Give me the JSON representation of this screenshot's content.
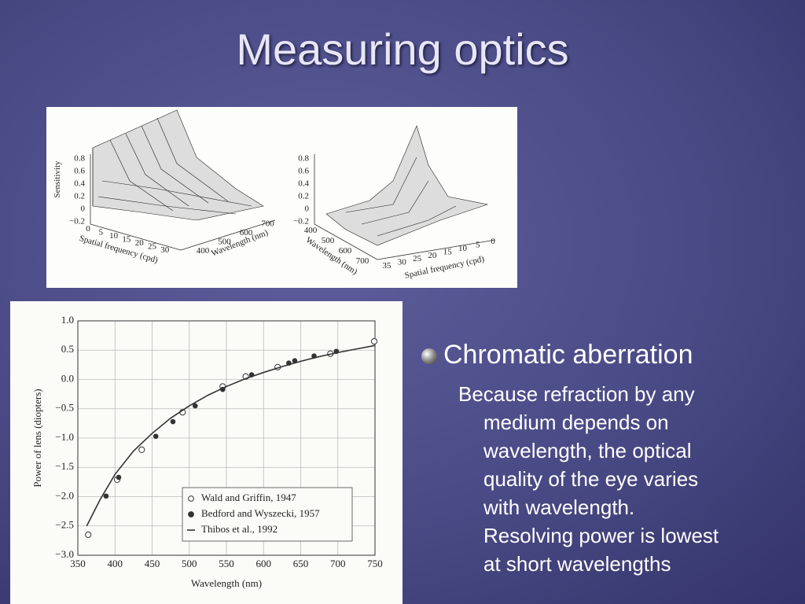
{
  "title": "Measuring optics",
  "surface_plots": [
    {
      "z_label": "Sensitivity",
      "zticks": [
        0.8,
        0.6,
        0.4,
        0.2,
        0,
        {
          "value": -0.2,
          "label": "−0.2"
        }
      ],
      "spatial_label": "Spatial frequency (cpd)",
      "spatial_ticks": [
        0,
        5,
        10,
        15,
        20,
        25,
        30
      ],
      "wavelength_label": "Wavelength (nm)",
      "wavelength_ticks": [
        400,
        500,
        600,
        700
      ]
    },
    {
      "zticks": [
        0.8,
        0.6,
        0.4,
        0.2,
        0,
        {
          "value": -0.2,
          "label": "−0.2"
        }
      ],
      "spatial_label": "Spatial frequency (cpd)",
      "spatial_ticks": [
        35,
        30,
        25,
        20,
        15,
        10,
        5,
        0
      ],
      "wavelength_label": "Wavelength (nm)",
      "wavelength_ticks": [
        400,
        500,
        600,
        700
      ]
    }
  ],
  "chart_data": {
    "type": "scatter",
    "x_label": "Wavelength (nm)",
    "y_label": "Power of lens (diopters)",
    "xlim": [
      350,
      750
    ],
    "ylim": [
      -3,
      1
    ],
    "xticks": [
      350,
      400,
      450,
      500,
      550,
      600,
      650,
      700,
      750
    ],
    "yticks": [
      {
        "value": 1,
        "label": "1.0"
      },
      0.5,
      {
        "value": 0,
        "label": "0.0"
      },
      {
        "value": -0.5,
        "label": "−0.5"
      },
      {
        "value": -1,
        "label": "−1.0"
      },
      {
        "value": -1.5,
        "label": "−1.5"
      },
      {
        "value": -2,
        "label": "−2.0"
      },
      {
        "value": -2.5,
        "label": "−2.5"
      },
      {
        "value": -3,
        "label": "−3.0"
      }
    ],
    "grid": true,
    "series": [
      {
        "name": "Wald and Griffin, 1947",
        "marker": "open",
        "color": "#333333",
        "x": [
          364,
          403,
          436,
          491,
          545,
          576,
          619,
          690,
          749
        ],
        "values": [
          -2.65,
          -1.71,
          -1.2,
          -0.56,
          -0.12,
          0.05,
          0.21,
          0.44,
          0.65
        ]
      },
      {
        "name": "Bedford and Wyszecki, 1957",
        "marker": "filled",
        "color": "#333333",
        "x": [
          388,
          405,
          455,
          478,
          508,
          545,
          584,
          634,
          642,
          668,
          698
        ],
        "values": [
          -1.99,
          -1.67,
          -0.97,
          -0.72,
          -0.45,
          -0.17,
          0.08,
          0.28,
          0.32,
          0.4,
          0.48
        ]
      },
      {
        "name": "Thibos et al., 1992",
        "marker": "line",
        "color": "#333333",
        "x": [
          362,
          380,
          400,
          425,
          450,
          475,
          500,
          525,
          550,
          575,
          600,
          625,
          650,
          675,
          700,
          725,
          750
        ],
        "values": [
          -2.5,
          -2.05,
          -1.62,
          -1.22,
          -0.92,
          -0.66,
          -0.45,
          -0.27,
          -0.12,
          0.01,
          0.12,
          0.22,
          0.31,
          0.39,
          0.46,
          0.52,
          0.58
        ]
      }
    ]
  },
  "bullet": {
    "heading": "Chromatic aberration",
    "lines": [
      "Because refraction by any",
      "medium depends on",
      "wavelength, the optical",
      "quality of the eye varies",
      "with wavelength.",
      "Resolving power is lowest",
      "at short wavelengths"
    ]
  }
}
